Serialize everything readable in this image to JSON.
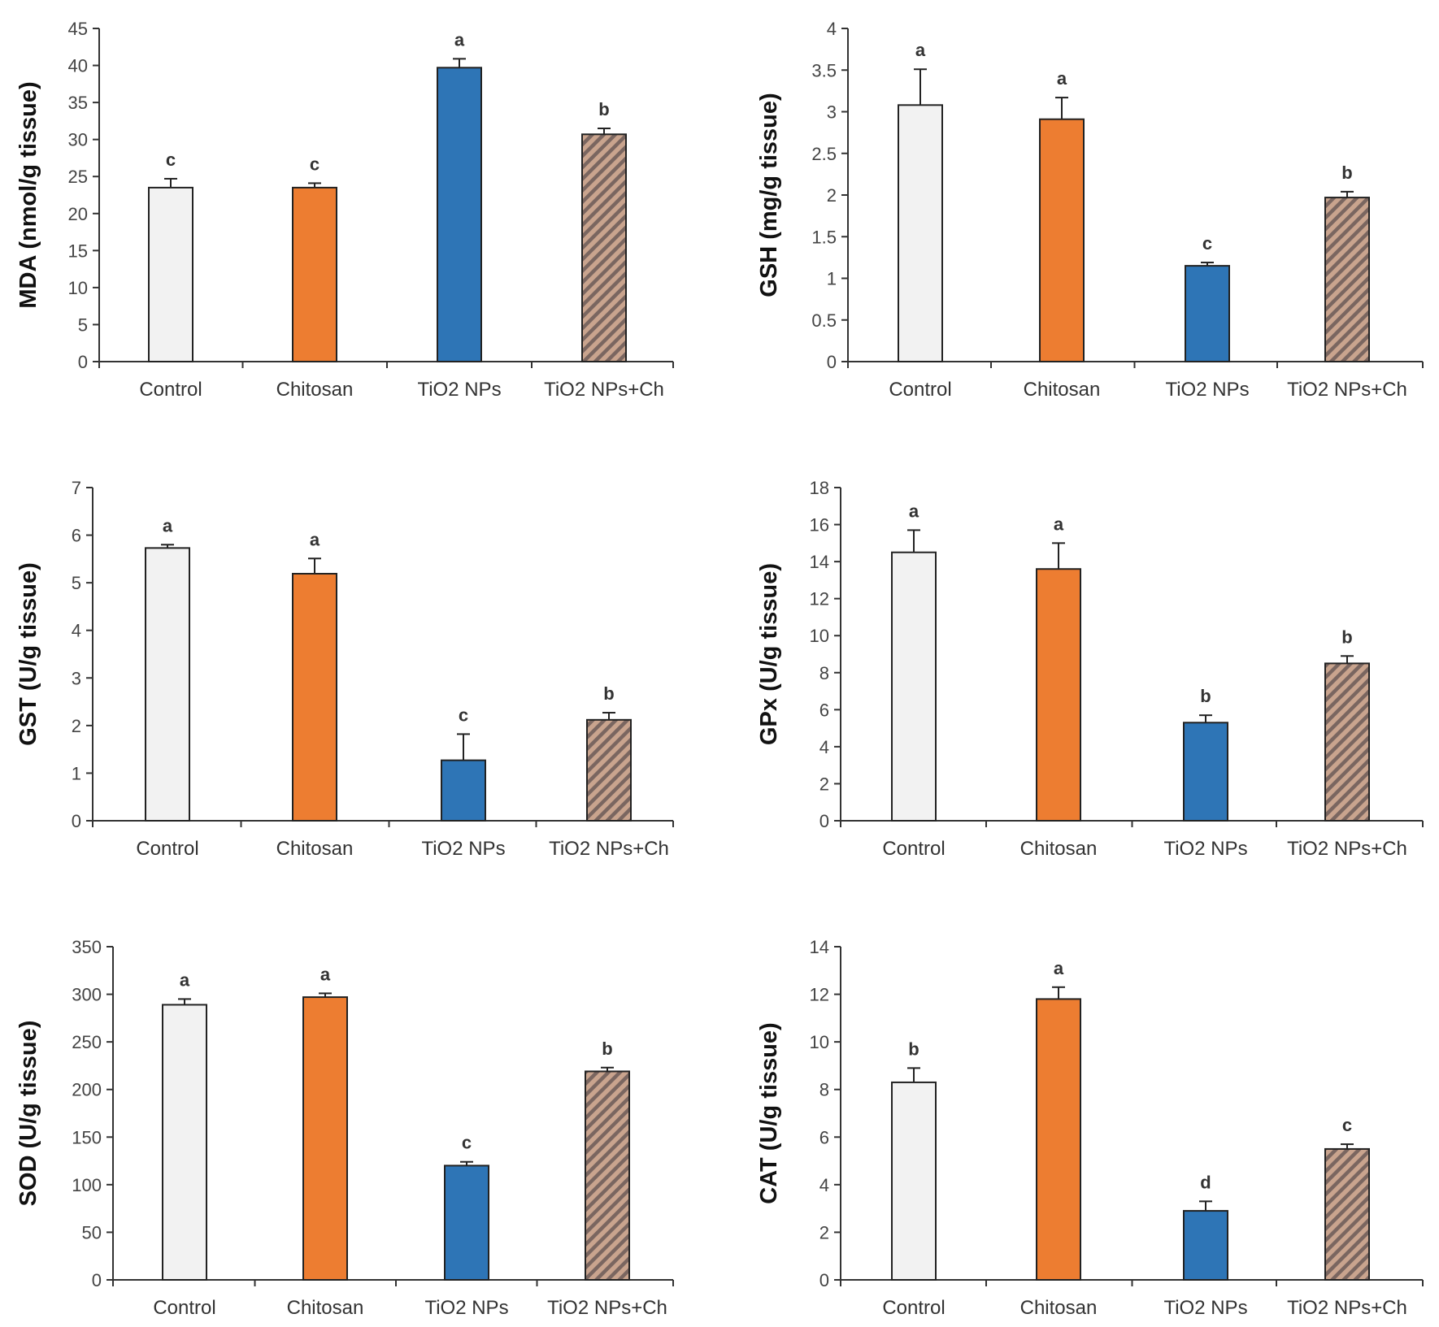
{
  "colors": {
    "control": "#f2f2f2",
    "chitosan": "#ed7d31",
    "tio2": "#2e75b6",
    "tio2_ch_base": "#c9a48e",
    "tio2_ch_stripe": "#7a6660",
    "outline": "#222222",
    "axis": "#333333"
  },
  "chart_data": [
    {
      "id": "mda",
      "type": "bar",
      "ylabel": "MDA (nmol/g tissue)",
      "categories": [
        "Control",
        "Chitosan",
        "TiO2 NPs",
        "TiO2 NPs+Ch"
      ],
      "values": [
        23.5,
        23.5,
        39.7,
        30.7
      ],
      "errors": [
        1.2,
        0.6,
        1.2,
        0.8
      ],
      "letters": [
        "c",
        "c",
        "a",
        "b"
      ],
      "ylim": [
        0,
        45
      ],
      "yticks": [
        0,
        5,
        10,
        15,
        20,
        25,
        30,
        35,
        40,
        45
      ]
    },
    {
      "id": "gsh",
      "type": "bar",
      "ylabel": "GSH (mg/g tissue)",
      "categories": [
        "Control",
        "Chitosan",
        "TiO2 NPs",
        "TiO2 NPs+Ch"
      ],
      "values": [
        3.08,
        2.91,
        1.15,
        1.97
      ],
      "errors": [
        0.43,
        0.26,
        0.04,
        0.07
      ],
      "letters": [
        "a",
        "a",
        "c",
        "b"
      ],
      "ylim": [
        0,
        4
      ],
      "yticks": [
        0,
        0.5,
        1,
        1.5,
        2,
        2.5,
        3,
        3.5,
        4
      ]
    },
    {
      "id": "gst",
      "type": "bar",
      "ylabel": "GST (U/g tissue)",
      "categories": [
        "Control",
        "Chitosan",
        "TiO2 NPs",
        "TiO2 NPs+Ch"
      ],
      "values": [
        5.73,
        5.19,
        1.27,
        2.12
      ],
      "errors": [
        0.07,
        0.32,
        0.55,
        0.15
      ],
      "letters": [
        "a",
        "a",
        "c",
        "b"
      ],
      "ylim": [
        0,
        7
      ],
      "yticks": [
        0,
        1,
        2,
        3,
        4,
        5,
        6,
        7
      ]
    },
    {
      "id": "gpx",
      "type": "bar",
      "ylabel": "GPx (U/g tissue)",
      "categories": [
        "Control",
        "Chitosan",
        "TiO2 NPs",
        "TiO2 NPs+Ch"
      ],
      "values": [
        14.5,
        13.6,
        5.3,
        8.5
      ],
      "errors": [
        1.2,
        1.4,
        0.4,
        0.4
      ],
      "letters": [
        "a",
        "a",
        "b",
        "b"
      ],
      "ylim": [
        0,
        18
      ],
      "yticks": [
        0,
        2,
        4,
        6,
        8,
        10,
        12,
        14,
        16,
        18
      ]
    },
    {
      "id": "sod",
      "type": "bar",
      "ylabel": "SOD (U/g tissue)",
      "categories": [
        "Control",
        "Chitosan",
        "TiO2 NPs",
        "TiO2 NPs+Ch"
      ],
      "values": [
        289,
        297,
        120,
        219
      ],
      "errors": [
        6,
        4,
        4,
        4
      ],
      "letters": [
        "a",
        "a",
        "c",
        "b"
      ],
      "ylim": [
        0,
        350
      ],
      "yticks": [
        0,
        50,
        100,
        150,
        200,
        250,
        300,
        350
      ]
    },
    {
      "id": "cat",
      "type": "bar",
      "ylabel": "CAT (U/g tissue)",
      "categories": [
        "Control",
        "Chitosan",
        "TiO2 NPs",
        "TiO2 NPs+Ch"
      ],
      "values": [
        8.3,
        11.8,
        2.9,
        5.5
      ],
      "errors": [
        0.6,
        0.5,
        0.4,
        0.2
      ],
      "letters": [
        "b",
        "a",
        "d",
        "c"
      ],
      "ylim": [
        0,
        14
      ],
      "yticks": [
        0,
        2,
        4,
        6,
        8,
        10,
        12,
        14
      ]
    }
  ]
}
